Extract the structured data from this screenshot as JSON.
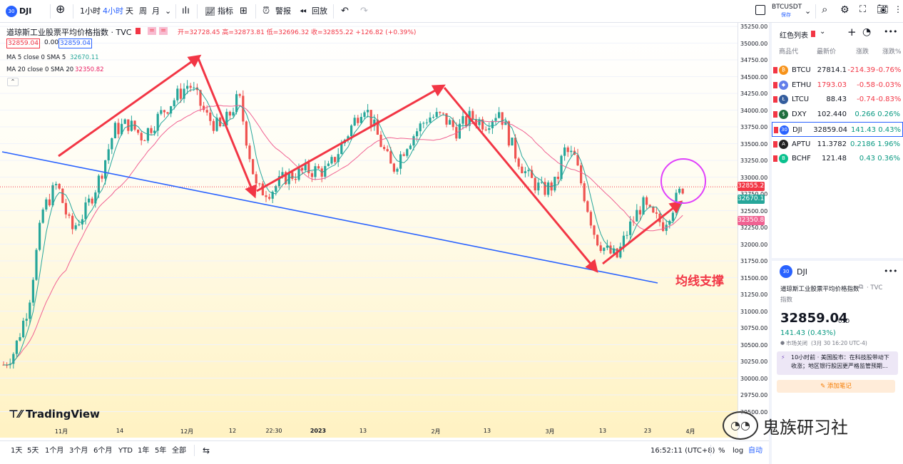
{
  "toolbar": {
    "symbol_badge": "30",
    "symbol": "DJI",
    "intervals": [
      "1小时",
      "4小时",
      "天",
      "周",
      "月"
    ],
    "active_interval": "4小时",
    "indicators_label": "指标",
    "alert_label": "警报",
    "replay_label": "回放",
    "compare_symbol": "BTCUSDT",
    "compare_sub": "保存"
  },
  "legend": {
    "title": "道琼斯工业股票平均价格指数 · TVC",
    "ohlc": "开=32728.45 高=32873.81 低=32696.32 收=32855.22 +126.82 (+0.39%)",
    "bid": "32859.04",
    "spread": "0.00",
    "ask": "32859.04",
    "ma5_label": "MA 5 close 0 SMA 5",
    "ma5_value": "32670.11",
    "ma20_label": "MA 20 close 0 SMA 20",
    "ma20_value": "32350.82"
  },
  "price_axis": [
    "35250.00",
    "35000.00",
    "34750.00",
    "34500.00",
    "34250.00",
    "34000.00",
    "33750.00",
    "33500.00",
    "33250.00",
    "33000.00",
    "32750.00",
    "32500.00",
    "32250.00",
    "32000.00",
    "31750.00",
    "31500.00",
    "31250.00",
    "31000.00",
    "30750.00",
    "30500.00",
    "30250.00",
    "30000.00",
    "29750.00",
    "29500.00"
  ],
  "price_labels": {
    "last": "32855.22",
    "ma5": "32670.11",
    "ma20": "32350.82"
  },
  "time_axis": [
    "11月",
    "14",
    "12月",
    "12",
    "22:30",
    "2023",
    "13",
    "2月",
    "13",
    "3月",
    "13",
    "23",
    "4月"
  ],
  "annotation": "均线支撑",
  "watermark": "TradingView",
  "wechat_watermark": "鬼族研习社",
  "bottom": {
    "ranges": [
      "1天",
      "5天",
      "1个月",
      "3个月",
      "6个月",
      "YTD",
      "1年",
      "5年",
      "全部"
    ],
    "clock": "16:52:11 (UTC+8)",
    "percent": "%",
    "log": "log",
    "auto": "自动"
  },
  "watchlist": {
    "title": "红色列表",
    "columns": [
      "商品代",
      "最新价",
      "涨跌",
      "涨跌%"
    ],
    "rows": [
      {
        "symbol": "BTCU",
        "last": "27814.1",
        "chg": "-214.39",
        "chgp": "-0.76%",
        "dir": "down",
        "icon_color": "#f7931a",
        "icon": "₿"
      },
      {
        "symbol": "ETHU",
        "last": "1793.03",
        "chg": "-0.58",
        "chgp": "-0.03%",
        "dir": "down",
        "icon_color": "#627eea",
        "icon": "◆"
      },
      {
        "symbol": "LTCU",
        "last": "88.43",
        "chg": "-0.74",
        "chgp": "-0.83%",
        "dir": "down",
        "icon_color": "#345d9d",
        "icon": "Ł"
      },
      {
        "symbol": "DXY",
        "last": "102.440",
        "chg": "0.266",
        "chgp": "0.26%",
        "dir": "up",
        "icon_color": "#1e6e3e",
        "icon": "$"
      },
      {
        "symbol": "DJI",
        "last": "32859.04",
        "chg": "141.43",
        "chgp": "0.43%",
        "dir": "up",
        "icon_color": "#2962ff",
        "icon": "30"
      },
      {
        "symbol": "APTU",
        "last": "11.3782",
        "chg": "0.2186",
        "chgp": "1.96%",
        "dir": "up",
        "icon_color": "#222",
        "icon": "A"
      },
      {
        "symbol": "BCHF",
        "last": "121.48",
        "chg": "0.43",
        "chgp": "0.36%",
        "dir": "up",
        "icon_color": "#0ac18e",
        "icon": "B"
      }
    ]
  },
  "detail": {
    "badge": "30",
    "symbol": "DJI",
    "name": "道琼斯工业股票平均价格指数",
    "exchange": "TVC",
    "type": "指数",
    "price": "32859.04",
    "currency": "USD",
    "change": "141.43 (0.43%)",
    "status": "市场关闭",
    "time": "(3月 30 16:20 UTC-4)",
    "news": "10小时前 · 美国股市：在科技股带动下收涨；地区银行股因更严格监管预期...",
    "note_button": "添加笔记"
  }
}
